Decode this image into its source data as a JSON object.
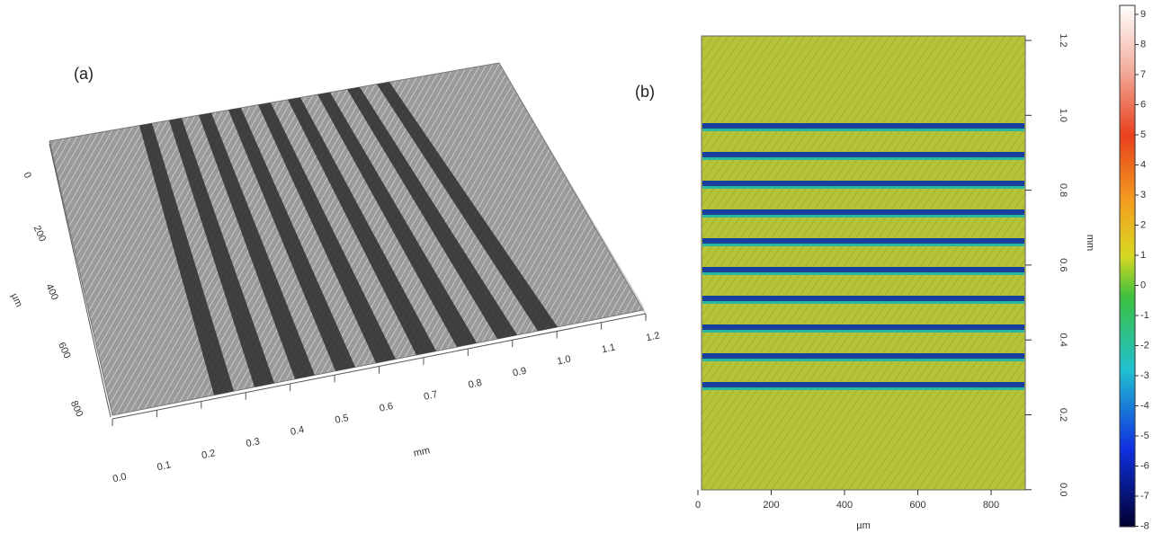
{
  "panel_a": {
    "label": "(a)",
    "x_axis": {
      "title": "mm",
      "ticks": [
        "0.0",
        "0.1",
        "0.2",
        "0.3",
        "0.4",
        "0.5",
        "0.6",
        "0.7",
        "0.8",
        "0.9",
        "1.0",
        "1.1",
        "1.2"
      ]
    },
    "y_axis": {
      "title": "µm",
      "ticks": [
        "0",
        "200",
        "400",
        "600",
        "800"
      ]
    }
  },
  "panel_b": {
    "label": "(b)",
    "x_axis": {
      "title": "µm",
      "ticks": [
        "0",
        "200",
        "400",
        "600",
        "800"
      ]
    },
    "y_axis": {
      "title": "mm",
      "ticks": [
        "1.2",
        "1.0",
        "0.8",
        "0.6",
        "0.4",
        "0.2",
        "0.0"
      ]
    }
  },
  "colorbar": {
    "ticks": [
      "9",
      "8",
      "7",
      "6",
      "5",
      "4",
      "3",
      "2",
      "1",
      "0",
      "-1",
      "-2",
      "-3",
      "-4",
      "-5",
      "-6",
      "-7",
      "-8"
    ]
  }
}
